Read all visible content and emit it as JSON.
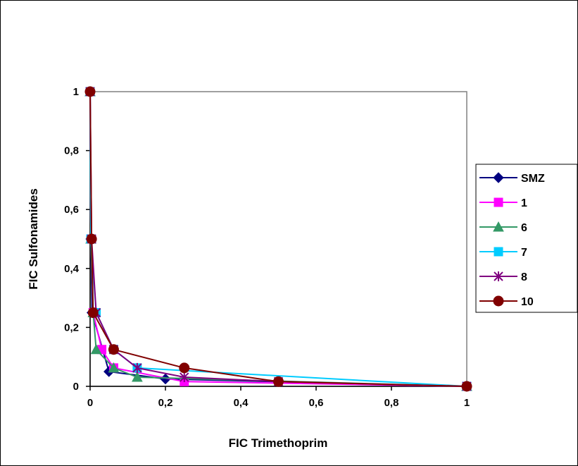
{
  "chart_data": {
    "type": "line",
    "title": "",
    "xlabel": "FIC Trimethoprim",
    "ylabel": "FIC Sulfonamides",
    "xlim": [
      0,
      1
    ],
    "ylim": [
      0,
      1
    ],
    "x_ticks": [
      0,
      0.2,
      0.4,
      0.6,
      0.8,
      1
    ],
    "x_tick_labels": [
      "0",
      "0,2",
      "0,4",
      "0,6",
      "0,8",
      "1"
    ],
    "y_ticks": [
      0,
      0.2,
      0.4,
      0.6,
      0.8,
      1
    ],
    "y_tick_labels": [
      "0",
      "0,2",
      "0,4",
      "0,6",
      "0,8",
      "1"
    ],
    "grid": false,
    "legend_position": "right",
    "series": [
      {
        "name": "SMZ",
        "color": "#000080",
        "marker": "diamond",
        "points": [
          [
            0,
            1
          ],
          [
            0.002,
            0.5
          ],
          [
            0.005,
            0.25
          ],
          [
            0.05,
            0.05
          ],
          [
            0.2,
            0.025
          ],
          [
            1,
            0
          ]
        ]
      },
      {
        "name": "1",
        "color": "#ff00ff",
        "marker": "square",
        "points": [
          [
            0,
            1
          ],
          [
            0.002,
            0.5
          ],
          [
            0.008,
            0.25
          ],
          [
            0.031,
            0.125
          ],
          [
            0.0625,
            0.0625
          ],
          [
            0.25,
            0.016
          ],
          [
            1,
            0
          ]
        ]
      },
      {
        "name": "6",
        "color": "#339966",
        "marker": "triangle",
        "points": [
          [
            0,
            1
          ],
          [
            0.002,
            0.5
          ],
          [
            0.008,
            0.25
          ],
          [
            0.016,
            0.125
          ],
          [
            0.0625,
            0.0625
          ],
          [
            0.125,
            0.031
          ],
          [
            1,
            0
          ]
        ]
      },
      {
        "name": "7",
        "color": "#00ccff",
        "marker": "square",
        "points": [
          [
            0,
            1
          ],
          [
            0.002,
            0.5
          ],
          [
            0.016,
            0.25
          ],
          [
            0.0625,
            0.125
          ],
          [
            0.125,
            0.0625
          ],
          [
            1,
            0
          ]
        ]
      },
      {
        "name": "8",
        "color": "#800080",
        "marker": "star",
        "points": [
          [
            0,
            1
          ],
          [
            0.004,
            0.5
          ],
          [
            0.016,
            0.25
          ],
          [
            0.0625,
            0.125
          ],
          [
            0.125,
            0.0625
          ],
          [
            0.25,
            0.031
          ],
          [
            0.5,
            0.016
          ],
          [
            1,
            0
          ]
        ]
      },
      {
        "name": "10",
        "color": "#800000",
        "marker": "circle",
        "points": [
          [
            0,
            1
          ],
          [
            0.004,
            0.5
          ],
          [
            0.008,
            0.25
          ],
          [
            0.0625,
            0.125
          ],
          [
            0.25,
            0.0625
          ],
          [
            0.5,
            0.016
          ],
          [
            1,
            0
          ]
        ]
      }
    ]
  }
}
